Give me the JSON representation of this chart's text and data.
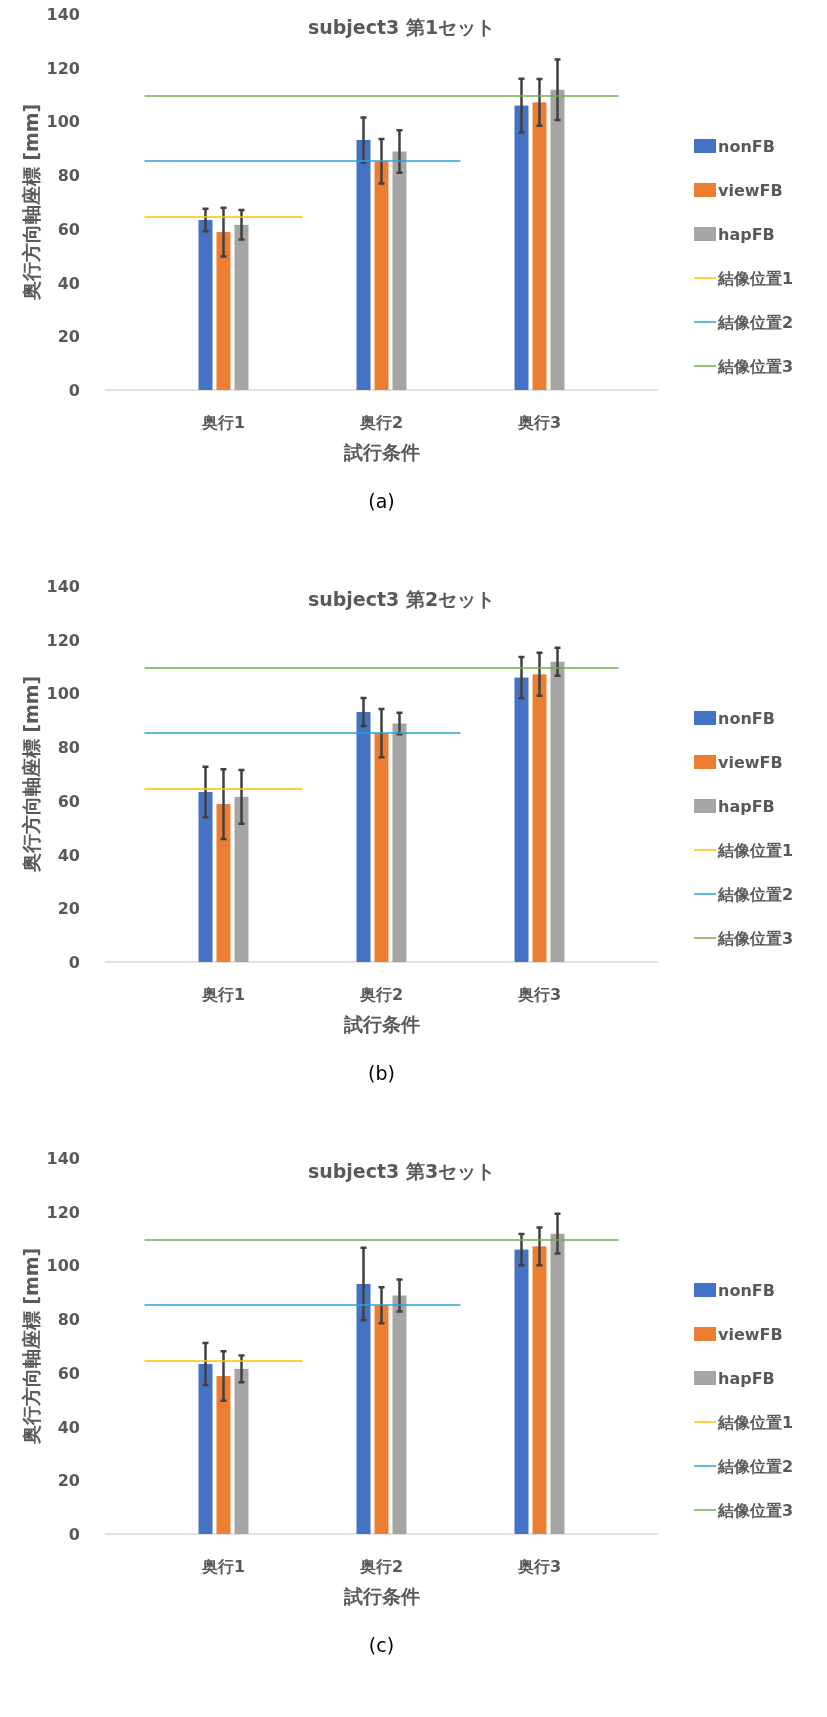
{
  "chart_data": [
    {
      "type": "bar",
      "title": "subject3 第1セット",
      "xlabel": "試行条件",
      "ylabel": "奥行方向軸座標 [mm]",
      "categories": [
        "奥行1",
        "奥行2",
        "奥行3"
      ],
      "ylim": [
        0,
        140
      ],
      "yticks": [
        0,
        20,
        40,
        60,
        80,
        100,
        120,
        140
      ],
      "legend": "right",
      "annotations": [
        "(a)"
      ],
      "series": [
        {
          "name": "nonFB",
          "color": "#4472c4",
          "values": [
            63.3,
            93.1,
            105.9
          ],
          "errors": [
            4.2,
            8.4,
            10
          ]
        },
        {
          "name": "viewFB",
          "color": "#ed7d31",
          "values": [
            58.8,
            85.2,
            107.1
          ],
          "errors": [
            9.1,
            8.3,
            8.7
          ]
        },
        {
          "name": "hapFB",
          "color": "#a5a5a5",
          "values": [
            61.5,
            88.8,
            111.8
          ],
          "errors": [
            5.5,
            7.9,
            11.3
          ]
        }
      ],
      "ref_lines": [
        {
          "axis": "y",
          "value": 64.4,
          "label": "結像位置1",
          "color": "#ffc000"
        },
        {
          "axis": "y",
          "value": 85.3,
          "label": "結像位置2",
          "color": "#29a3dc"
        },
        {
          "axis": "y",
          "value": 109.5,
          "label": "結像位置3",
          "color": "#70ad47"
        }
      ]
    },
    {
      "type": "bar",
      "title": "subject3 第2セット",
      "xlabel": "試行条件",
      "ylabel": "奥行方向軸座標 [mm]",
      "categories": [
        "奥行1",
        "奥行2",
        "奥行3"
      ],
      "ylim": [
        0,
        140
      ],
      "yticks": [
        0,
        20,
        40,
        60,
        80,
        100,
        120,
        140
      ],
      "legend": "right",
      "annotations": [
        "(b)"
      ],
      "series": [
        {
          "name": "nonFB",
          "color": "#4472c4",
          "values": [
            63.3,
            93.1,
            105.9
          ],
          "errors": [
            9.4,
            5.2,
            7.7
          ]
        },
        {
          "name": "viewFB",
          "color": "#ed7d31",
          "values": [
            58.8,
            85.2,
            107.1
          ],
          "errors": [
            13,
            9,
            8
          ]
        },
        {
          "name": "hapFB",
          "color": "#a5a5a5",
          "values": [
            61.5,
            88.8,
            111.8
          ],
          "errors": [
            10,
            4,
            5.2
          ]
        }
      ],
      "ref_lines": [
        {
          "axis": "y",
          "value": 64.4,
          "label": "結像位置1",
          "color": "#ffc000"
        },
        {
          "axis": "y",
          "value": 85.3,
          "label": "結像位置2",
          "color": "#29a3dc"
        },
        {
          "axis": "y",
          "value": 109.5,
          "label": "結像位置3",
          "color": "#70ad47"
        }
      ]
    },
    {
      "type": "bar",
      "title": "subject3 第3セット",
      "xlabel": "試行条件",
      "ylabel": "奥行方向軸座標 [mm]",
      "categories": [
        "奥行1",
        "奥行2",
        "奥行3"
      ],
      "ylim": [
        0,
        140
      ],
      "yticks": [
        0,
        20,
        40,
        60,
        80,
        100,
        120,
        140
      ],
      "legend": "right",
      "annotations": [
        "(c)"
      ],
      "series": [
        {
          "name": "nonFB",
          "color": "#4472c4",
          "values": [
            63.3,
            93.1,
            105.9
          ],
          "errors": [
            7.8,
            13.5,
            5.8
          ]
        },
        {
          "name": "viewFB",
          "color": "#ed7d31",
          "values": [
            58.8,
            85.2,
            107.1
          ],
          "errors": [
            9.2,
            6.7,
            7
          ]
        },
        {
          "name": "hapFB",
          "color": "#a5a5a5",
          "values": [
            61.5,
            88.8,
            111.8
          ],
          "errors": [
            5,
            6,
            7.4
          ]
        }
      ],
      "ref_lines": [
        {
          "axis": "y",
          "value": 64.4,
          "label": "結像位置1",
          "color": "#ffc000"
        },
        {
          "axis": "y",
          "value": 85.3,
          "label": "結像位置2",
          "color": "#29a3dc"
        },
        {
          "axis": "y",
          "value": 109.5,
          "label": "結像位置3",
          "color": "#70ad47"
        }
      ]
    }
  ]
}
